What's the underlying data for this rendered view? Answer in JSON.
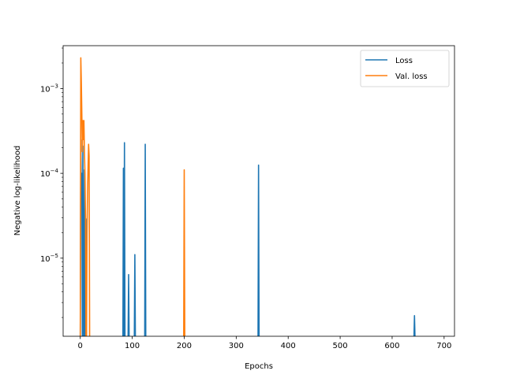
{
  "chart_data": {
    "type": "line",
    "title": "",
    "xlabel": "Epochs",
    "ylabel": "Negative log-likelihood",
    "yscale": "log",
    "xlim": [
      -33,
      720
    ],
    "ylim": [
      1.2e-06,
      0.0032
    ],
    "x_ticks": [
      0,
      100,
      200,
      300,
      400,
      500,
      600,
      700
    ],
    "y_ticks": [
      {
        "value": 1e-05,
        "base": "10",
        "exp": "−5"
      },
      {
        "value": 0.0001,
        "base": "10",
        "exp": "−4"
      },
      {
        "value": 0.001,
        "base": "10",
        "exp": "−3"
      }
    ],
    "grid": false,
    "legend_position": "top-right",
    "series": [
      {
        "name": "Loss",
        "color": "#1f77b4",
        "x": [
          0,
          1,
          2,
          3,
          4,
          5,
          6,
          7,
          8,
          9,
          10,
          11,
          12,
          82,
          83,
          84,
          85,
          86,
          87,
          88,
          92,
          93,
          94,
          104,
          105,
          106,
          124,
          125,
          126,
          342,
          343,
          344,
          642,
          643,
          644
        ],
        "y": [
          null,
          0.00025,
          5e-05,
          0.0001,
          null,
          0.00021,
          null,
          null,
          0.00011,
          null,
          null,
          2.9e-05,
          null,
          null,
          0.000115,
          null,
          0.00023,
          null,
          null,
          null,
          null,
          6.4e-06,
          null,
          null,
          1.1e-05,
          null,
          null,
          0.00022,
          null,
          null,
          0.000125,
          null,
          null,
          2.1e-06,
          null
        ]
      },
      {
        "name": "Val. loss",
        "color": "#ff7f0e",
        "x": [
          0,
          1,
          2,
          3,
          4,
          5,
          6,
          7,
          8,
          9,
          10,
          11,
          12,
          13,
          14,
          15,
          16,
          17,
          18,
          19,
          20,
          21,
          22,
          198,
          199,
          200,
          201
        ],
        "y": [
          null,
          0.0023,
          0.0012,
          0.0005,
          0.00018,
          0.00042,
          0.00025,
          0.00042,
          0.00018,
          0.0001,
          3e-05,
          null,
          null,
          2e-05,
          6e-05,
          0.00012,
          0.00022,
          0.00016,
          null,
          null,
          null,
          null,
          null,
          null,
          null,
          0.00011,
          null
        ]
      }
    ]
  }
}
